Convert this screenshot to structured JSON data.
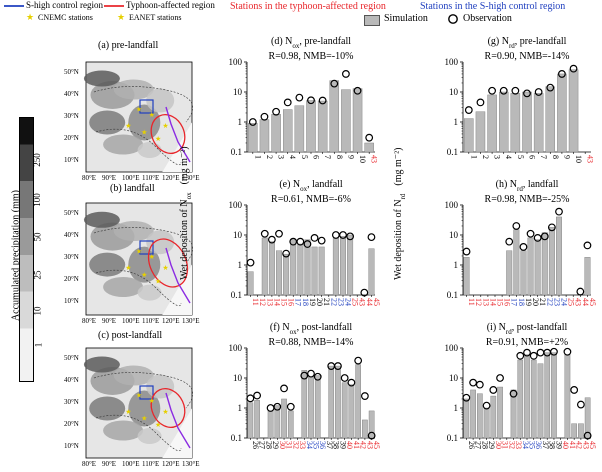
{
  "legend": {
    "s_high_region": "S-high control region",
    "typhoon_region": "Typhoon-affected region",
    "cnemc": "CNEMC stations",
    "eanet": "EANET stations",
    "red_header": "Stations in the typhoon-affected region",
    "blue_header": "Stations in the S-high control region",
    "simulation": "Simulation",
    "observation": "Observation",
    "colors": {
      "red": "#e8262b",
      "blue": "#1f3fbf",
      "gray": "#b9b9b9"
    }
  },
  "colorbar": {
    "label": "Accumulated precipitation (mm)",
    "ticks": [
      "1",
      "10",
      "25",
      "50",
      "100",
      "250"
    ]
  },
  "maps": {
    "titles": [
      "(a) pre-landfall",
      "(b) landfall",
      "(c) post-landfall"
    ],
    "lat_labels": [
      "50°N",
      "40°N",
      "30°N",
      "20°N",
      "10°N"
    ],
    "lon_labels": [
      "80°E",
      "90°E",
      "100°E",
      "110°E",
      "120°E",
      "130°E"
    ]
  },
  "y_axis_labels": {
    "nox": "Wet deposition of N",
    "nox_sub": "ox",
    "nrd": "Wet deposition of N",
    "nrd_sub": "rd",
    "unit": "(mg m⁻²)"
  },
  "chart_data": [
    {
      "id": "d",
      "type": "bar",
      "title": "(d) N",
      "sub": "ox",
      "title_tail": ", pre-landfall",
      "stats": "R=0.98, NMB=-10%",
      "ylim": [
        0.1,
        100
      ],
      "yticks": [
        "0.1",
        "1",
        "10",
        "100"
      ],
      "categories": [
        "1",
        "2",
        "3",
        "4",
        "5",
        "6",
        "7",
        "8",
        "9",
        "10",
        "43"
      ],
      "cat_colors": [
        "k",
        "k",
        "k",
        "k",
        "k",
        "k",
        "k",
        "k",
        "k",
        "k",
        "r"
      ],
      "values": [
        0.9,
        1.2,
        1.8,
        2.6,
        3.5,
        5.2,
        5.0,
        24,
        12,
        13,
        0.2
      ],
      "obs": [
        1.0,
        1.5,
        2.2,
        4.5,
        6.5,
        5.3,
        5.2,
        19,
        40,
        11,
        0.3
      ]
    },
    {
      "id": "g",
      "type": "bar",
      "title": "(g) N",
      "sub": "rd",
      "title_tail": ", pre-landfall",
      "stats": "R=0.90, NMB=-14%",
      "ylim": [
        0.1,
        100
      ],
      "yticks": [
        "0.1",
        "1",
        "10",
        "100"
      ],
      "categories": [
        "1",
        "2",
        "3",
        "4",
        "5",
        "6",
        "7",
        "8",
        "9",
        "10",
        "43"
      ],
      "cat_colors": [
        "k",
        "k",
        "k",
        "k",
        "k",
        "k",
        "k",
        "k",
        "k",
        "k",
        "r"
      ],
      "values": [
        1.3,
        2.2,
        8,
        10,
        9,
        10,
        9,
        15,
        40,
        55,
        null
      ],
      "obs": [
        2.5,
        4.5,
        11,
        11,
        11,
        9,
        10,
        14,
        40,
        60,
        null
      ]
    },
    {
      "id": "e",
      "type": "bar",
      "title": "(e) N",
      "sub": "ox",
      "title_tail": ", landfall",
      "stats": "R=0.61, NMB=-6%",
      "ylim": [
        0.1,
        100
      ],
      "yticks": [
        "0.1",
        "1",
        "10",
        "100"
      ],
      "categories": [
        "11",
        "12",
        "13",
        "14",
        "15",
        "16",
        "17",
        "18",
        "19",
        "20",
        "21",
        "22",
        "23",
        "24",
        "25",
        "43",
        "44",
        "45"
      ],
      "cat_colors": [
        "r",
        "r",
        "r",
        "r",
        "r",
        "r",
        "b",
        "b",
        "k",
        "k",
        "k",
        "b",
        "b",
        "b",
        "r",
        "r",
        "r",
        "r"
      ],
      "values": [
        0.6,
        null,
        8,
        6,
        3,
        2.3,
        7,
        5,
        7,
        4,
        4,
        null,
        8,
        9,
        10,
        null,
        null,
        3.5
      ],
      "obs": [
        1.2,
        null,
        11,
        7,
        11,
        2.4,
        6,
        6,
        5,
        8,
        6.5,
        null,
        10,
        10,
        9,
        null,
        0.12,
        8.5
      ]
    },
    {
      "id": "h",
      "type": "bar",
      "title": "(h) N",
      "sub": "rd",
      "title_tail": ", landfall",
      "stats": "R=0.98, NMB=-25%",
      "ylim": [
        0.1,
        100
      ],
      "yticks": [
        "0.1",
        "1",
        "10",
        "100"
      ],
      "categories": [
        "11",
        "12",
        "13",
        "14",
        "15",
        "16",
        "17",
        "18",
        "19",
        "20",
        "21",
        "22",
        "23",
        "24",
        "25",
        "43",
        "44",
        "45"
      ],
      "cat_colors": [
        "r",
        "r",
        "r",
        "r",
        "r",
        "r",
        "b",
        "b",
        "k",
        "k",
        "k",
        "b",
        "b",
        "b",
        "r",
        "r",
        "r",
        "r"
      ],
      "values": [
        1.8,
        0.1,
        null,
        null,
        null,
        null,
        3,
        15,
        3,
        8,
        7,
        12,
        18,
        40,
        null,
        null,
        null,
        1.8
      ],
      "obs": [
        2.8,
        null,
        null,
        null,
        null,
        null,
        6,
        20,
        4,
        11,
        8,
        9,
        18,
        60,
        null,
        null,
        0.13,
        4.5
      ]
    },
    {
      "id": "f",
      "type": "bar",
      "title": "(f) N",
      "sub": "ox",
      "title_tail": ", post-landfall",
      "stats": "R=0.88, NMB=-14%",
      "ylim": [
        0.1,
        100
      ],
      "yticks": [
        "0.1",
        "1",
        "10",
        "100"
      ],
      "categories": [
        "26",
        "27",
        "28",
        "29",
        "30",
        "31",
        "32",
        "33",
        "34",
        "35",
        "36",
        "37",
        "38",
        "39",
        "40",
        "41",
        "42",
        "43",
        "45"
      ],
      "cat_colors": [
        "k",
        "k",
        "k",
        "k",
        "r",
        "r",
        "r",
        "r",
        "b",
        "b",
        "b",
        "k",
        "k",
        "k",
        "r",
        "r",
        "r",
        "r",
        "r"
      ],
      "values": [
        1.5,
        1.8,
        null,
        0.8,
        1.2,
        2.0,
        0.8,
        null,
        18,
        11,
        12,
        null,
        25,
        25,
        7,
        6,
        28,
        0.4,
        0.8
      ],
      "obs": [
        2.1,
        2.6,
        null,
        1.0,
        1.1,
        4.5,
        1.1,
        null,
        12,
        14,
        11,
        null,
        25,
        25,
        10,
        7,
        38,
        2.5,
        0.12
      ]
    },
    {
      "id": "i",
      "type": "bar",
      "title": "(i) N",
      "sub": "rd",
      "title_tail": ", post-landfall",
      "stats": "R=0.91, NMB=+2%",
      "ylim": [
        0.1,
        100
      ],
      "yticks": [
        "0.1",
        "1",
        "10",
        "100"
      ],
      "categories": [
        "26",
        "27",
        "28",
        "29",
        "30",
        "31",
        "32",
        "33",
        "34",
        "35",
        "36",
        "37",
        "38",
        "39",
        "40",
        "41",
        "42",
        "43",
        "45"
      ],
      "cat_colors": [
        "k",
        "k",
        "k",
        "k",
        "r",
        "r",
        "r",
        "r",
        "b",
        "b",
        "b",
        "k",
        "k",
        "k",
        "r",
        "r",
        "r",
        "r",
        "r"
      ],
      "values": [
        2,
        4,
        3,
        1,
        2.5,
        5,
        null,
        4,
        40,
        60,
        40,
        30,
        70,
        70,
        null,
        60,
        0.3,
        0.3,
        2.2
      ],
      "obs": [
        2.2,
        7,
        6,
        1.2,
        4,
        10,
        null,
        3,
        55,
        70,
        55,
        70,
        70,
        75,
        null,
        75,
        4,
        1.3,
        0.12
      ]
    }
  ]
}
